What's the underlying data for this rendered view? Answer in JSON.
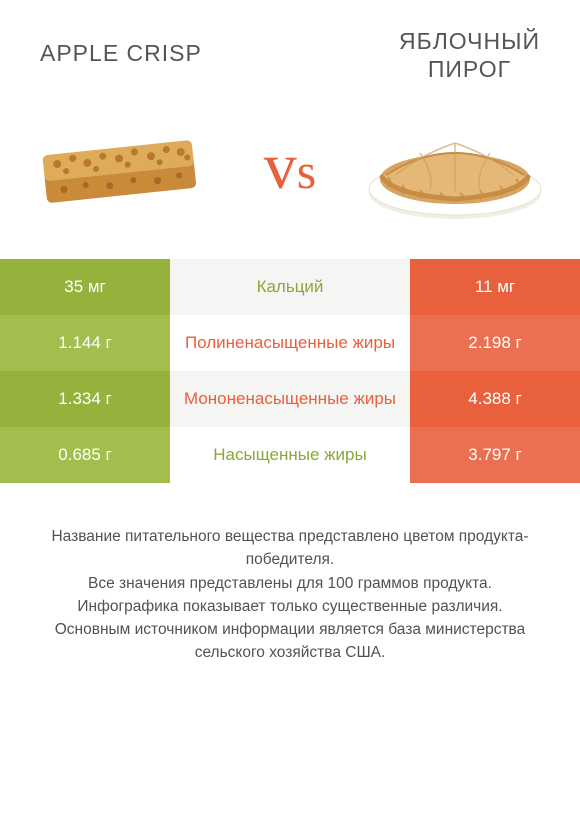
{
  "colors": {
    "leftBg": "#94b23c",
    "leftBgAlt": "#a2be4d",
    "midBg": "#f5f5f3",
    "midBgAlt": "#ffffff",
    "rightBg": "#e8603c",
    "rightBgAlt": "#ea7051",
    "leftText": "#8aa836",
    "rightText": "#e8603c",
    "vs": "#e8603c"
  },
  "titles": {
    "left": "APPLE CRISP",
    "right": "ЯБЛОЧНЫЙ\nПИРОГ"
  },
  "vs": "vs",
  "rows": [
    {
      "left": "35 мг",
      "label": "Кальций",
      "right": "11 мг",
      "winner": "left"
    },
    {
      "left": "1.144 г",
      "label": "Полиненасыщенные жиры",
      "right": "2.198 г",
      "winner": "right"
    },
    {
      "left": "1.334 г",
      "label": "Мононенасыщенные жиры",
      "right": "4.388 г",
      "winner": "right"
    },
    {
      "left": "0.685 г",
      "label": "Насыщенные жиры",
      "right": "3.797 г",
      "winner": "left"
    }
  ],
  "footer": "Название питательного вещества представлено цветом продукта-победителя.\nВсе значения представлены для 100 граммов продукта.\nИнфографика показывает только существенные различия.\nОсновным источником информации является база министерства сельского хозяйства США."
}
